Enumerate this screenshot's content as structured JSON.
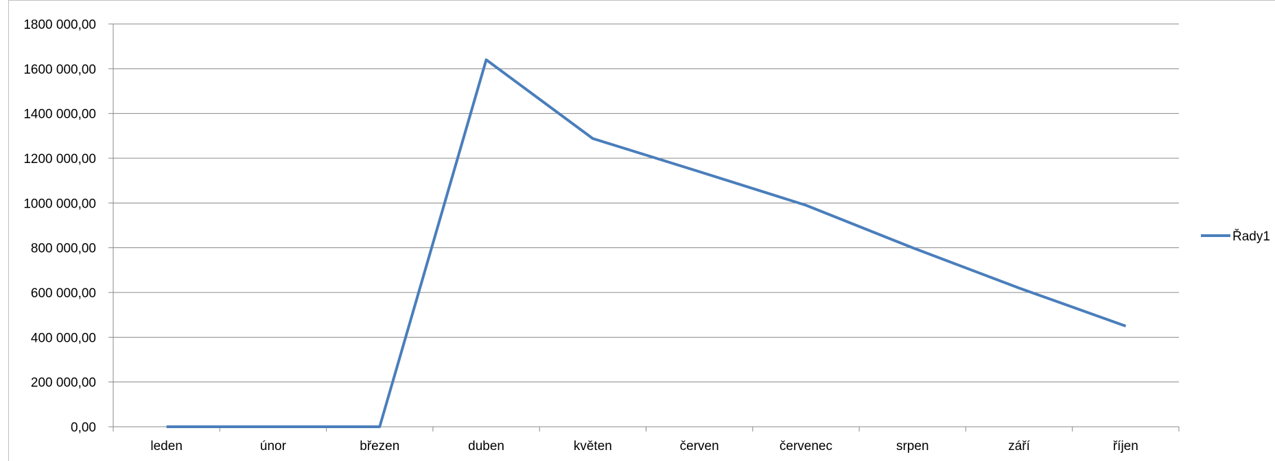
{
  "chart_data": {
    "type": "line",
    "categories": [
      "leden",
      "únor",
      "březen",
      "duben",
      "květen",
      "červen",
      "červenec",
      "srpen",
      "září",
      "říjen"
    ],
    "series": [
      {
        "name": "Řady1",
        "color": "#4a7ebb",
        "values": [
          0,
          0,
          0,
          1640000,
          1288000,
          1140000,
          990000,
          800000,
          620000,
          450000
        ]
      }
    ],
    "ylim": [
      0,
      1800000
    ],
    "yticks": [
      0,
      200000,
      400000,
      600000,
      800000,
      1000000,
      1200000,
      1400000,
      1600000,
      1800000
    ],
    "ytick_labels": [
      "0,00",
      "200 000,00",
      "400 000,00",
      "600 000,00",
      "800 000,00",
      "1000 000,00",
      "1200 000,00",
      "1400 000,00",
      "1600 000,00",
      "1800 000,00"
    ],
    "title": "",
    "xlabel": "",
    "ylabel": "",
    "grid": true,
    "legend_position": "right"
  }
}
